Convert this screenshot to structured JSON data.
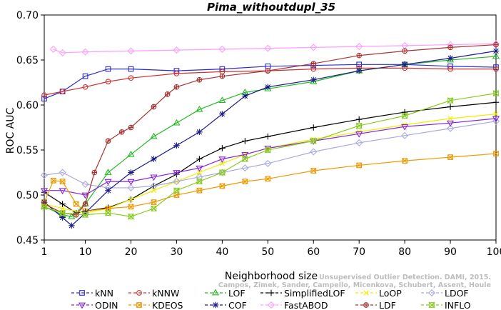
{
  "chart_data": {
    "type": "line",
    "title": "Pima_withoutdupl_35",
    "xlabel": "Neighborhood size",
    "ylabel": "ROC AUC",
    "xlim": [
      1,
      100
    ],
    "ylim": [
      0.45,
      0.7
    ],
    "x_ticks": [
      1,
      10,
      20,
      30,
      40,
      50,
      60,
      70,
      80,
      90,
      100
    ],
    "y_ticks": [
      0.45,
      0.5,
      0.55,
      0.6,
      0.65,
      0.7
    ],
    "y_tick_labels": [
      "0.45",
      "0.50",
      "0.55",
      "0.60",
      "0.65",
      "0.70"
    ],
    "grid": false,
    "legend_position": "bottom",
    "watermark_lines": [
      "Campos, Zimek, Sander, Campello, Micenkova, Schubert, Assent, Houle",
      "Unsupervised Outlier Detection. DAMI, 2015."
    ],
    "series": [
      {
        "name": "kNN",
        "color": "#2b2bd0",
        "marker": "square",
        "points": [
          [
            1,
            0.607
          ],
          [
            5,
            0.615
          ],
          [
            10,
            0.632
          ],
          [
            15,
            0.64
          ],
          [
            20,
            0.64
          ],
          [
            30,
            0.638
          ],
          [
            40,
            0.64
          ],
          [
            50,
            0.643
          ],
          [
            60,
            0.644
          ],
          [
            70,
            0.645
          ],
          [
            80,
            0.645
          ],
          [
            90,
            0.643
          ],
          [
            100,
            0.642
          ]
        ]
      },
      {
        "name": "kNNW",
        "color": "#d03030",
        "marker": "circle",
        "points": [
          [
            1,
            0.611
          ],
          [
            5,
            0.615
          ],
          [
            10,
            0.62
          ],
          [
            15,
            0.626
          ],
          [
            20,
            0.63
          ],
          [
            30,
            0.635
          ],
          [
            40,
            0.637
          ],
          [
            50,
            0.638
          ],
          [
            60,
            0.64
          ],
          [
            70,
            0.641
          ],
          [
            80,
            0.641
          ],
          [
            90,
            0.64
          ],
          [
            100,
            0.64
          ]
        ]
      },
      {
        "name": "LOF",
        "color": "#22bb22",
        "marker": "triangle-up",
        "points": [
          [
            1,
            0.487
          ],
          [
            5,
            0.478
          ],
          [
            7,
            0.476
          ],
          [
            10,
            0.49
          ],
          [
            15,
            0.525
          ],
          [
            20,
            0.545
          ],
          [
            25,
            0.565
          ],
          [
            30,
            0.58
          ],
          [
            35,
            0.595
          ],
          [
            40,
            0.605
          ],
          [
            45,
            0.614
          ],
          [
            50,
            0.618
          ],
          [
            60,
            0.626
          ],
          [
            70,
            0.638
          ],
          [
            80,
            0.645
          ],
          [
            90,
            0.65
          ],
          [
            100,
            0.654
          ]
        ]
      },
      {
        "name": "SimplifiedLOF",
        "color": "#000000",
        "marker": "plus",
        "points": [
          [
            1,
            0.503
          ],
          [
            5,
            0.49
          ],
          [
            8,
            0.48
          ],
          [
            10,
            0.482
          ],
          [
            15,
            0.486
          ],
          [
            20,
            0.495
          ],
          [
            25,
            0.51
          ],
          [
            30,
            0.523
          ],
          [
            35,
            0.54
          ],
          [
            40,
            0.552
          ],
          [
            45,
            0.56
          ],
          [
            50,
            0.565
          ],
          [
            60,
            0.575
          ],
          [
            70,
            0.584
          ],
          [
            80,
            0.592
          ],
          [
            90,
            0.598
          ],
          [
            100,
            0.603
          ]
        ]
      },
      {
        "name": "LoOP",
        "color": "#eeee00",
        "marker": "x",
        "points": [
          [
            1,
            0.49
          ],
          [
            5,
            0.485
          ],
          [
            10,
            0.48
          ],
          [
            15,
            0.485
          ],
          [
            20,
            0.495
          ],
          [
            25,
            0.505
          ],
          [
            30,
            0.515
          ],
          [
            35,
            0.525
          ],
          [
            40,
            0.535
          ],
          [
            45,
            0.545
          ],
          [
            50,
            0.552
          ],
          [
            60,
            0.562
          ],
          [
            70,
            0.57
          ],
          [
            80,
            0.578
          ],
          [
            90,
            0.585
          ],
          [
            100,
            0.59
          ]
        ]
      },
      {
        "name": "LDOF",
        "color": "#aaaadd",
        "marker": "diamond",
        "points": [
          [
            1,
            0.522
          ],
          [
            5,
            0.525
          ],
          [
            10,
            0.512
          ],
          [
            15,
            0.508
          ],
          [
            20,
            0.508
          ],
          [
            25,
            0.51
          ],
          [
            30,
            0.515
          ],
          [
            35,
            0.52
          ],
          [
            40,
            0.525
          ],
          [
            45,
            0.53
          ],
          [
            50,
            0.535
          ],
          [
            60,
            0.548
          ],
          [
            70,
            0.558
          ],
          [
            80,
            0.566
          ],
          [
            90,
            0.574
          ],
          [
            100,
            0.582
          ]
        ]
      },
      {
        "name": "ODIN",
        "color": "#8822dd",
        "marker": "triangle-down",
        "points": [
          [
            1,
            0.505
          ],
          [
            5,
            0.505
          ],
          [
            10,
            0.5
          ],
          [
            15,
            0.515
          ],
          [
            20,
            0.515
          ],
          [
            25,
            0.52
          ],
          [
            30,
            0.525
          ],
          [
            35,
            0.53
          ],
          [
            40,
            0.54
          ],
          [
            45,
            0.545
          ],
          [
            50,
            0.552
          ],
          [
            60,
            0.56
          ],
          [
            70,
            0.568
          ],
          [
            80,
            0.576
          ],
          [
            90,
            0.58
          ],
          [
            100,
            0.585
          ]
        ]
      },
      {
        "name": "KDEOS",
        "color": "#ee9900",
        "marker": "square-x",
        "points": [
          [
            1,
            0.492
          ],
          [
            3,
            0.516
          ],
          [
            5,
            0.515
          ],
          [
            8,
            0.49
          ],
          [
            10,
            0.482
          ],
          [
            15,
            0.485
          ],
          [
            20,
            0.487
          ],
          [
            25,
            0.492
          ],
          [
            30,
            0.5
          ],
          [
            35,
            0.505
          ],
          [
            40,
            0.51
          ],
          [
            45,
            0.515
          ],
          [
            50,
            0.518
          ],
          [
            60,
            0.527
          ],
          [
            70,
            0.533
          ],
          [
            80,
            0.538
          ],
          [
            90,
            0.542
          ],
          [
            100,
            0.546
          ]
        ]
      },
      {
        "name": "COF",
        "color": "#1c1c88",
        "marker": "asterisk",
        "points": [
          [
            1,
            0.492
          ],
          [
            5,
            0.475
          ],
          [
            7,
            0.466
          ],
          [
            10,
            0.48
          ],
          [
            15,
            0.505
          ],
          [
            20,
            0.525
          ],
          [
            25,
            0.54
          ],
          [
            30,
            0.555
          ],
          [
            35,
            0.57
          ],
          [
            40,
            0.59
          ],
          [
            45,
            0.61
          ],
          [
            50,
            0.62
          ],
          [
            60,
            0.628
          ],
          [
            70,
            0.638
          ],
          [
            80,
            0.645
          ],
          [
            90,
            0.652
          ],
          [
            100,
            0.66
          ]
        ]
      },
      {
        "name": "FastABOD",
        "color": "#ff9cff",
        "marker": "diamond",
        "points": [
          [
            3,
            0.662
          ],
          [
            5,
            0.658
          ],
          [
            10,
            0.659
          ],
          [
            20,
            0.66
          ],
          [
            30,
            0.661
          ],
          [
            40,
            0.662
          ],
          [
            50,
            0.663
          ],
          [
            60,
            0.664
          ],
          [
            70,
            0.665
          ],
          [
            80,
            0.666
          ],
          [
            90,
            0.667
          ],
          [
            100,
            0.668
          ]
        ]
      },
      {
        "name": "LDF",
        "color": "#aa3333",
        "marker": "circle-plus",
        "points": [
          [
            1,
            0.49
          ],
          [
            5,
            0.48
          ],
          [
            8,
            0.478
          ],
          [
            10,
            0.49
          ],
          [
            12,
            0.525
          ],
          [
            15,
            0.56
          ],
          [
            18,
            0.57
          ],
          [
            20,
            0.575
          ],
          [
            25,
            0.598
          ],
          [
            28,
            0.612
          ],
          [
            30,
            0.62
          ],
          [
            35,
            0.628
          ],
          [
            40,
            0.632
          ],
          [
            50,
            0.638
          ],
          [
            60,
            0.646
          ],
          [
            70,
            0.655
          ],
          [
            80,
            0.66
          ],
          [
            90,
            0.664
          ],
          [
            100,
            0.667
          ]
        ]
      },
      {
        "name": "INFLO",
        "color": "#88cc22",
        "marker": "hourglass",
        "points": [
          [
            1,
            0.487
          ],
          [
            5,
            0.48
          ],
          [
            10,
            0.478
          ],
          [
            15,
            0.48
          ],
          [
            20,
            0.476
          ],
          [
            25,
            0.485
          ],
          [
            30,
            0.505
          ],
          [
            35,
            0.515
          ],
          [
            40,
            0.525
          ],
          [
            45,
            0.54
          ],
          [
            50,
            0.55
          ],
          [
            60,
            0.56
          ],
          [
            70,
            0.577
          ],
          [
            80,
            0.588
          ],
          [
            90,
            0.605
          ],
          [
            100,
            0.613
          ]
        ]
      }
    ]
  }
}
